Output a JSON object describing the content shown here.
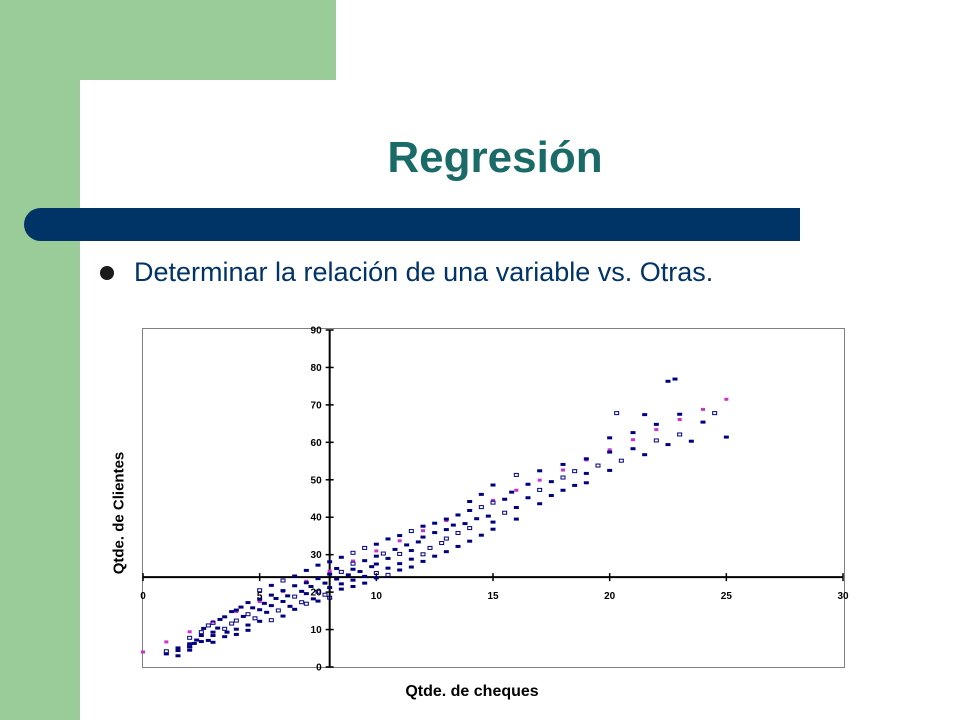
{
  "slide": {
    "title": "Regresión",
    "bullet": "Determinar la relación de una variable vs. Otras."
  },
  "colors": {
    "green_accent": "#99cc99",
    "title_color": "#1a6b68",
    "bar_color": "#003366",
    "points_color": "#000080",
    "fit_color": "#cc33cc"
  },
  "chart_data": {
    "type": "scatter",
    "title": "",
    "xlabel": "Qtde. de cheques",
    "ylabel": "Qtde. de Clientes",
    "xlim": [
      0,
      30
    ],
    "ylim": [
      0,
      90
    ],
    "x_ticks": [
      "0",
      "5",
      "10",
      "15",
      "20",
      "25",
      "30"
    ],
    "x_tick_values": [
      0,
      5,
      10,
      15,
      20,
      25,
      30
    ],
    "y_ticks": [
      "0",
      "10",
      "20",
      "30",
      "40",
      "50",
      "60",
      "70",
      "80",
      "90"
    ],
    "y_tick_values": [
      0,
      10,
      20,
      30,
      40,
      50,
      60,
      70,
      80,
      90
    ],
    "x_axis_crosses_y_at": 24,
    "y_axis_crosses_x_at": 8,
    "grid": false,
    "legend": "none",
    "series": [
      {
        "kind": "observed",
        "points": [
          [
            1.0,
            3.5
          ],
          [
            1.0,
            4.2
          ],
          [
            1.5,
            4.4
          ],
          [
            1.5,
            3.0
          ],
          [
            1.5,
            5.1
          ],
          [
            2.0,
            7.8
          ],
          [
            2.0,
            5.4
          ],
          [
            2.0,
            6.2
          ],
          [
            2.0,
            4.5
          ],
          [
            2.0,
            5.6
          ],
          [
            2.2,
            6.3
          ],
          [
            2.3,
            7.2
          ],
          [
            2.5,
            8.4
          ],
          [
            2.5,
            9.3
          ],
          [
            2.5,
            6.8
          ],
          [
            2.6,
            10.3
          ],
          [
            2.8,
            7.1
          ],
          [
            2.8,
            11.1
          ],
          [
            3.0,
            8.4
          ],
          [
            3.0,
            6.6
          ],
          [
            3.0,
            9.3
          ],
          [
            3.0,
            11.8
          ],
          [
            3.2,
            10.4
          ],
          [
            3.3,
            12.7
          ],
          [
            3.5,
            8.1
          ],
          [
            3.5,
            10.2
          ],
          [
            3.5,
            13.4
          ],
          [
            3.6,
            9.3
          ],
          [
            3.8,
            14.8
          ],
          [
            3.8,
            11.6
          ],
          [
            4.0,
            8.7
          ],
          [
            4.0,
            10.1
          ],
          [
            4.0,
            15.2
          ],
          [
            4.0,
            12.4
          ],
          [
            4.2,
            16.0
          ],
          [
            4.3,
            13.5
          ],
          [
            4.5,
            11.2
          ],
          [
            4.5,
            14.1
          ],
          [
            4.5,
            17.2
          ],
          [
            4.5,
            9.8
          ],
          [
            4.7,
            15.8
          ],
          [
            4.8,
            13.0
          ],
          [
            5.0,
            18.1
          ],
          [
            5.0,
            12.2
          ],
          [
            5.0,
            15.3
          ],
          [
            5.0,
            20.5
          ],
          [
            5.2,
            17.0
          ],
          [
            5.3,
            14.6
          ],
          [
            5.5,
            19.2
          ],
          [
            5.5,
            12.5
          ],
          [
            5.5,
            16.4
          ],
          [
            5.5,
            21.8
          ],
          [
            5.7,
            18.3
          ],
          [
            5.8,
            15.1
          ],
          [
            6.0,
            13.6
          ],
          [
            6.0,
            17.5
          ],
          [
            6.0,
            20.4
          ],
          [
            6.0,
            23.1
          ],
          [
            6.2,
            19.0
          ],
          [
            6.3,
            16.2
          ],
          [
            6.5,
            21.7
          ],
          [
            6.5,
            18.8
          ],
          [
            6.5,
            24.3
          ],
          [
            6.5,
            15.4
          ],
          [
            6.8,
            20.2
          ],
          [
            6.8,
            17.3
          ],
          [
            7.0,
            22.5
          ],
          [
            7.0,
            19.6
          ],
          [
            7.0,
            25.8
          ],
          [
            7.0,
            16.9
          ],
          [
            7.2,
            21.5
          ],
          [
            7.3,
            18.2
          ],
          [
            7.5,
            23.6
          ],
          [
            7.5,
            20.1
          ],
          [
            7.5,
            27.2
          ],
          [
            7.5,
            17.6
          ],
          [
            7.8,
            22.4
          ],
          [
            7.8,
            19.3
          ],
          [
            8.0,
            24.8
          ],
          [
            8.0,
            21.2
          ],
          [
            8.0,
            28.1
          ],
          [
            8.0,
            18.5
          ],
          [
            8.3,
            23.5
          ],
          [
            8.3,
            26.3
          ],
          [
            8.5,
            20.8
          ],
          [
            8.5,
            25.4
          ],
          [
            8.5,
            22.2
          ],
          [
            8.5,
            29.3
          ],
          [
            8.8,
            24.6
          ],
          [
            9.0,
            27.6
          ],
          [
            9.0,
            21.5
          ],
          [
            9.0,
            26.1
          ],
          [
            9.0,
            23.2
          ],
          [
            9.0,
            30.5
          ],
          [
            9.3,
            25.5
          ],
          [
            9.5,
            28.4
          ],
          [
            9.5,
            24.2
          ],
          [
            9.5,
            31.8
          ],
          [
            9.5,
            22.4
          ],
          [
            9.8,
            26.8
          ],
          [
            10.0,
            29.6
          ],
          [
            10.0,
            25.1
          ],
          [
            10.0,
            32.8
          ],
          [
            10.0,
            23.8
          ],
          [
            10.0,
            27.5
          ],
          [
            10.3,
            30.3
          ],
          [
            10.5,
            26.4
          ],
          [
            10.5,
            34.2
          ],
          [
            10.5,
            29.0
          ],
          [
            10.5,
            24.6
          ],
          [
            10.8,
            31.4
          ],
          [
            11.0,
            27.6
          ],
          [
            11.0,
            35.1
          ],
          [
            11.0,
            30.2
          ],
          [
            11.0,
            25.9
          ],
          [
            11.3,
            32.6
          ],
          [
            11.5,
            28.8
          ],
          [
            11.5,
            36.3
          ],
          [
            11.5,
            31.1
          ],
          [
            11.5,
            26.7
          ],
          [
            11.8,
            33.4
          ],
          [
            12.0,
            30.1
          ],
          [
            12.0,
            37.6
          ],
          [
            12.0,
            28.2
          ],
          [
            12.0,
            34.7
          ],
          [
            12.3,
            31.8
          ],
          [
            12.5,
            35.9
          ],
          [
            12.5,
            29.6
          ],
          [
            12.5,
            38.4
          ],
          [
            12.8,
            33.1
          ],
          [
            13.0,
            36.7
          ],
          [
            13.0,
            30.8
          ],
          [
            13.0,
            39.5
          ],
          [
            13.0,
            34.3
          ],
          [
            13.3,
            37.9
          ],
          [
            13.5,
            32.2
          ],
          [
            13.5,
            40.6
          ],
          [
            13.5,
            35.8
          ],
          [
            13.8,
            38.3
          ],
          [
            14.0,
            33.6
          ],
          [
            14.0,
            41.8
          ],
          [
            14.0,
            37.1
          ],
          [
            14.0,
            44.2
          ],
          [
            14.3,
            39.6
          ],
          [
            14.5,
            35.2
          ],
          [
            14.5,
            42.7
          ],
          [
            14.5,
            46.1
          ],
          [
            14.8,
            40.3
          ],
          [
            15.0,
            36.8
          ],
          [
            15.0,
            43.9
          ],
          [
            15.0,
            48.6
          ],
          [
            15.0,
            38.7
          ],
          [
            15.5,
            44.8
          ],
          [
            15.5,
            41.2
          ],
          [
            15.8,
            46.7
          ],
          [
            16.0,
            42.6
          ],
          [
            16.0,
            39.5
          ],
          [
            16.0,
            51.3
          ],
          [
            16.5,
            45.2
          ],
          [
            16.5,
            48.8
          ],
          [
            17.0,
            43.6
          ],
          [
            17.0,
            47.3
          ],
          [
            17.0,
            52.4
          ],
          [
            17.5,
            49.5
          ],
          [
            17.5,
            45.8
          ],
          [
            18.0,
            50.6
          ],
          [
            18.0,
            47.2
          ],
          [
            18.0,
            54.1
          ],
          [
            18.5,
            48.5
          ],
          [
            18.5,
            52.3
          ],
          [
            19.0,
            51.7
          ],
          [
            19.0,
            55.6
          ],
          [
            19.0,
            49.2
          ],
          [
            19.5,
            53.8
          ],
          [
            20.0,
            52.5
          ],
          [
            20.0,
            57.4
          ],
          [
            20.0,
            61.2
          ],
          [
            20.5,
            55.1
          ],
          [
            21.0,
            58.3
          ],
          [
            21.0,
            62.6
          ],
          [
            21.5,
            56.7
          ],
          [
            22.0,
            60.5
          ],
          [
            22.0,
            64.8
          ],
          [
            22.5,
            59.4
          ],
          [
            22.5,
            76.3
          ],
          [
            23.0,
            62.1
          ],
          [
            23.0,
            67.5
          ],
          [
            23.5,
            60.3
          ],
          [
            24.0,
            65.4
          ],
          [
            24.5,
            67.8
          ],
          [
            25.0,
            61.4
          ],
          [
            22.8,
            76.9
          ],
          [
            21.5,
            67.4
          ],
          [
            20.3,
            67.8
          ]
        ]
      },
      {
        "kind": "fitted",
        "points": [
          [
            0,
            4.0
          ],
          [
            1,
            6.7
          ],
          [
            2,
            9.4
          ],
          [
            3,
            12.1
          ],
          [
            4,
            14.8
          ],
          [
            5,
            17.5
          ],
          [
            6,
            20.2
          ],
          [
            7,
            22.9
          ],
          [
            8,
            25.6
          ],
          [
            9,
            28.3
          ],
          [
            10,
            31.0
          ],
          [
            11,
            33.7
          ],
          [
            12,
            36.4
          ],
          [
            13,
            39.1
          ],
          [
            14,
            41.8
          ],
          [
            15,
            44.5
          ],
          [
            16,
            47.2
          ],
          [
            17,
            49.9
          ],
          [
            18,
            52.6
          ],
          [
            19,
            55.3
          ],
          [
            20,
            58.0
          ],
          [
            21,
            60.7
          ],
          [
            22,
            63.4
          ],
          [
            23,
            66.1
          ],
          [
            24,
            68.8
          ],
          [
            25,
            71.5
          ]
        ]
      }
    ]
  }
}
